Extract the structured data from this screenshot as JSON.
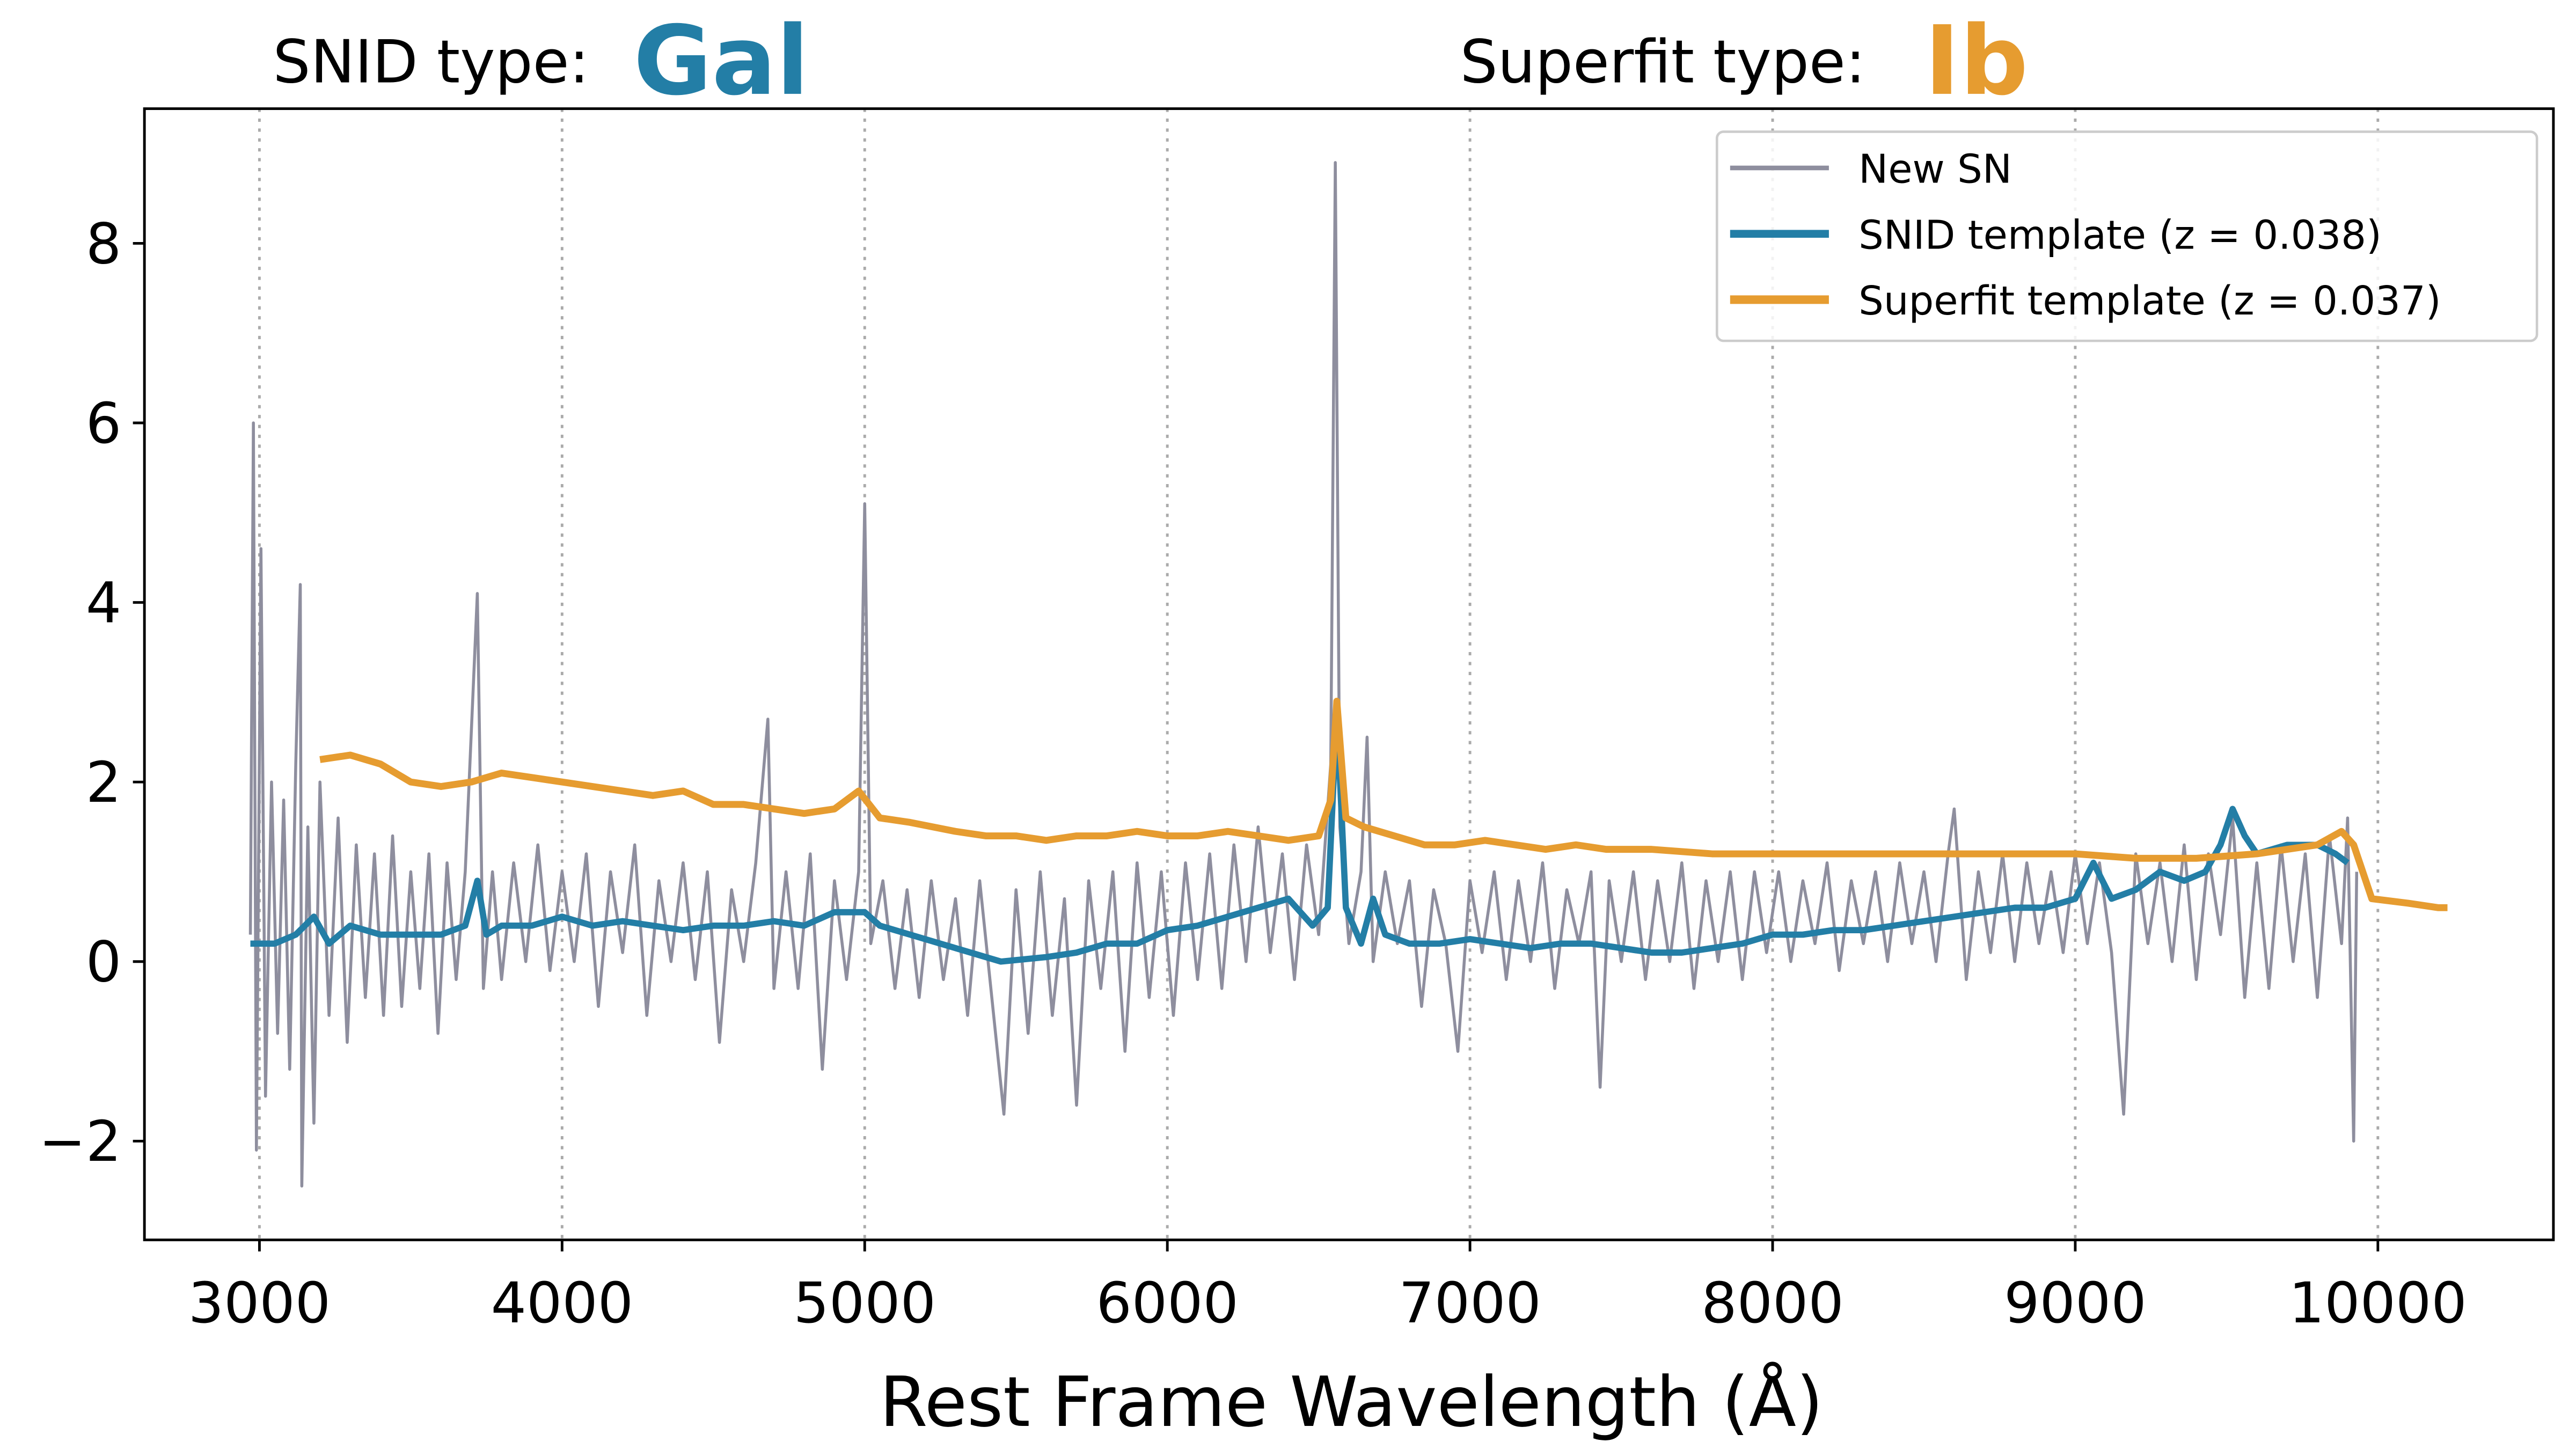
{
  "chart_data": {
    "type": "line",
    "snid_label": "SNID type:",
    "snid_type": "Gal",
    "superfit_label": "Superfit type:",
    "superfit_type": "Ib",
    "xlabel": "Rest Frame Wavelength (Å)",
    "xlim": [
      2620,
      10580
    ],
    "ylim": [
      -3.1,
      9.5
    ],
    "xticks": [
      3000,
      4000,
      5000,
      6000,
      7000,
      8000,
      9000,
      10000
    ],
    "yticks": [
      {
        "value": -2,
        "label": "−2"
      },
      0,
      2,
      4,
      6,
      8
    ],
    "grid": "x",
    "legend": "upper right",
    "series": [
      {
        "name": "New SN",
        "color": "#8e8e9e",
        "x": [
          2970,
          2980,
          2990,
          3005,
          3020,
          3040,
          3060,
          3080,
          3100,
          3120,
          3135,
          3140,
          3160,
          3180,
          3200,
          3230,
          3260,
          3290,
          3320,
          3350,
          3380,
          3410,
          3440,
          3470,
          3500,
          3530,
          3560,
          3590,
          3620,
          3650,
          3680,
          3720,
          3740,
          3770,
          3800,
          3840,
          3880,
          3920,
          3960,
          4000,
          4040,
          4080,
          4120,
          4160,
          4200,
          4240,
          4280,
          4320,
          4360,
          4400,
          4440,
          4480,
          4520,
          4560,
          4600,
          4640,
          4680,
          4700,
          4740,
          4780,
          4820,
          4860,
          4900,
          4940,
          4980,
          5000,
          5020,
          5060,
          5100,
          5140,
          5180,
          5220,
          5260,
          5300,
          5340,
          5380,
          5420,
          5460,
          5500,
          5540,
          5580,
          5620,
          5660,
          5700,
          5740,
          5780,
          5820,
          5860,
          5900,
          5940,
          5980,
          6020,
          6060,
          6100,
          6140,
          6180,
          6220,
          6260,
          6300,
          6340,
          6380,
          6420,
          6460,
          6500,
          6540,
          6555,
          6570,
          6600,
          6640,
          6660,
          6680,
          6720,
          6760,
          6800,
          6840,
          6880,
          6920,
          6960,
          7000,
          7040,
          7080,
          7120,
          7160,
          7200,
          7240,
          7280,
          7320,
          7360,
          7400,
          7430,
          7460,
          7500,
          7540,
          7580,
          7620,
          7660,
          7700,
          7740,
          7780,
          7820,
          7860,
          7900,
          7940,
          7980,
          8020,
          8060,
          8100,
          8140,
          8180,
          8220,
          8260,
          8300,
          8340,
          8380,
          8420,
          8460,
          8500,
          8540,
          8580,
          8600,
          8640,
          8680,
          8720,
          8760,
          8800,
          8840,
          8880,
          8920,
          8960,
          9000,
          9040,
          9080,
          9120,
          9160,
          9200,
          9240,
          9280,
          9320,
          9360,
          9400,
          9440,
          9480,
          9520,
          9560,
          9600,
          9640,
          9680,
          9720,
          9760,
          9800,
          9840,
          9880,
          9900,
          9920,
          9930
        ],
        "values": [
          0.3,
          6.0,
          -2.1,
          4.6,
          -1.5,
          2.0,
          -0.8,
          1.8,
          -1.2,
          2.2,
          4.2,
          -2.5,
          1.5,
          -1.8,
          2.0,
          -0.6,
          1.6,
          -0.9,
          1.3,
          -0.4,
          1.2,
          -0.6,
          1.4,
          -0.5,
          1.0,
          -0.3,
          1.2,
          -0.8,
          1.1,
          -0.2,
          1.0,
          4.1,
          -0.3,
          1.0,
          -0.2,
          1.1,
          0.0,
          1.3,
          -0.1,
          1.0,
          0.0,
          1.2,
          -0.5,
          1.0,
          0.1,
          1.3,
          -0.6,
          0.9,
          0.0,
          1.1,
          -0.2,
          1.0,
          -0.9,
          0.8,
          0.0,
          1.1,
          2.7,
          -0.3,
          1.0,
          -0.3,
          1.2,
          -1.2,
          0.9,
          -0.2,
          1.0,
          5.1,
          0.2,
          0.9,
          -0.3,
          0.8,
          -0.4,
          0.9,
          -0.2,
          0.7,
          -0.6,
          0.9,
          -0.4,
          -1.7,
          0.8,
          -0.8,
          1.0,
          -0.6,
          0.7,
          -1.6,
          0.9,
          -0.3,
          1.0,
          -1.0,
          1.1,
          -0.4,
          1.0,
          -0.6,
          1.1,
          -0.2,
          1.2,
          -0.3,
          1.3,
          0.0,
          1.5,
          0.1,
          1.2,
          -0.2,
          1.3,
          0.3,
          2.2,
          8.9,
          1.5,
          0.2,
          1.0,
          2.5,
          0.0,
          1.0,
          0.2,
          0.9,
          -0.5,
          0.8,
          0.2,
          -1.0,
          0.9,
          0.1,
          1.0,
          -0.2,
          0.9,
          0.0,
          1.1,
          -0.3,
          0.8,
          0.2,
          1.0,
          -1.4,
          0.9,
          0.0,
          1.0,
          -0.2,
          0.9,
          0.0,
          1.1,
          -0.3,
          0.9,
          0.0,
          1.0,
          -0.2,
          1.0,
          0.1,
          1.0,
          0.0,
          0.9,
          0.2,
          1.1,
          -0.1,
          0.9,
          0.2,
          1.0,
          0.0,
          1.1,
          0.2,
          1.0,
          0.0,
          1.2,
          1.7,
          -0.2,
          1.0,
          0.1,
          1.2,
          0.0,
          1.1,
          0.2,
          1.0,
          0.1,
          1.2,
          0.2,
          1.1,
          0.1,
          -1.7,
          1.2,
          0.2,
          1.1,
          0.0,
          1.3,
          -0.2,
          1.2,
          0.3,
          1.6,
          -0.4,
          1.1,
          -0.3,
          1.3,
          0.0,
          1.2,
          -0.4,
          1.4,
          0.2,
          1.6,
          -2.0,
          1.0
        ]
      },
      {
        "name": "SNID template (z = 0.038)",
        "color": "#237ea6",
        "x": [
          2970,
          3050,
          3120,
          3180,
          3230,
          3300,
          3400,
          3500,
          3600,
          3680,
          3720,
          3750,
          3800,
          3900,
          4000,
          4100,
          4200,
          4300,
          4400,
          4500,
          4600,
          4700,
          4800,
          4900,
          5000,
          5050,
          5150,
          5250,
          5350,
          5450,
          5600,
          5700,
          5800,
          5900,
          6000,
          6100,
          6200,
          6300,
          6400,
          6480,
          6530,
          6560,
          6590,
          6640,
          6680,
          6720,
          6800,
          6900,
          7000,
          7100,
          7200,
          7300,
          7400,
          7500,
          7600,
          7700,
          7800,
          7900,
          8000,
          8100,
          8200,
          8300,
          8400,
          8500,
          8600,
          8700,
          8800,
          8900,
          9000,
          9060,
          9120,
          9200,
          9280,
          9360,
          9430,
          9480,
          9520,
          9560,
          9600,
          9700,
          9800,
          9860,
          9900
        ],
        "values": [
          0.2,
          0.2,
          0.3,
          0.5,
          0.2,
          0.4,
          0.3,
          0.3,
          0.3,
          0.4,
          0.9,
          0.3,
          0.4,
          0.4,
          0.5,
          0.4,
          0.45,
          0.4,
          0.35,
          0.4,
          0.4,
          0.45,
          0.4,
          0.55,
          0.55,
          0.4,
          0.3,
          0.2,
          0.1,
          0.0,
          0.05,
          0.1,
          0.2,
          0.2,
          0.35,
          0.4,
          0.5,
          0.6,
          0.7,
          0.4,
          0.6,
          2.8,
          0.6,
          0.2,
          0.7,
          0.3,
          0.2,
          0.2,
          0.25,
          0.2,
          0.15,
          0.2,
          0.2,
          0.15,
          0.1,
          0.1,
          0.15,
          0.2,
          0.3,
          0.3,
          0.35,
          0.35,
          0.4,
          0.45,
          0.5,
          0.55,
          0.6,
          0.6,
          0.7,
          1.1,
          0.7,
          0.8,
          1.0,
          0.9,
          1.0,
          1.3,
          1.7,
          1.4,
          1.2,
          1.3,
          1.3,
          1.2,
          1.1
        ]
      },
      {
        "name": "Superfit template (z = 0.037)",
        "color": "#e69c30",
        "x": [
          3200,
          3300,
          3400,
          3500,
          3600,
          3700,
          3800,
          3900,
          4000,
          4100,
          4200,
          4300,
          4400,
          4500,
          4600,
          4700,
          4800,
          4900,
          4980,
          5050,
          5150,
          5300,
          5400,
          5500,
          5600,
          5700,
          5800,
          5900,
          6000,
          6100,
          6200,
          6300,
          6400,
          6500,
          6540,
          6560,
          6590,
          6650,
          6750,
          6850,
          6950,
          7050,
          7150,
          7250,
          7350,
          7450,
          7600,
          7800,
          8000,
          8200,
          8400,
          8600,
          8800,
          9000,
          9200,
          9400,
          9600,
          9800,
          9880,
          9920,
          9980,
          10100,
          10200,
          10230
        ],
        "values": [
          2.25,
          2.3,
          2.2,
          2.0,
          1.95,
          2.0,
          2.1,
          2.05,
          2.0,
          1.95,
          1.9,
          1.85,
          1.9,
          1.75,
          1.75,
          1.7,
          1.65,
          1.7,
          1.9,
          1.6,
          1.55,
          1.45,
          1.4,
          1.4,
          1.35,
          1.4,
          1.4,
          1.45,
          1.4,
          1.4,
          1.45,
          1.4,
          1.35,
          1.4,
          1.8,
          2.9,
          1.6,
          1.5,
          1.4,
          1.3,
          1.3,
          1.35,
          1.3,
          1.25,
          1.3,
          1.25,
          1.25,
          1.2,
          1.2,
          1.2,
          1.2,
          1.2,
          1.2,
          1.2,
          1.15,
          1.15,
          1.2,
          1.3,
          1.45,
          1.3,
          0.7,
          0.65,
          0.6,
          0.6
        ]
      }
    ]
  }
}
